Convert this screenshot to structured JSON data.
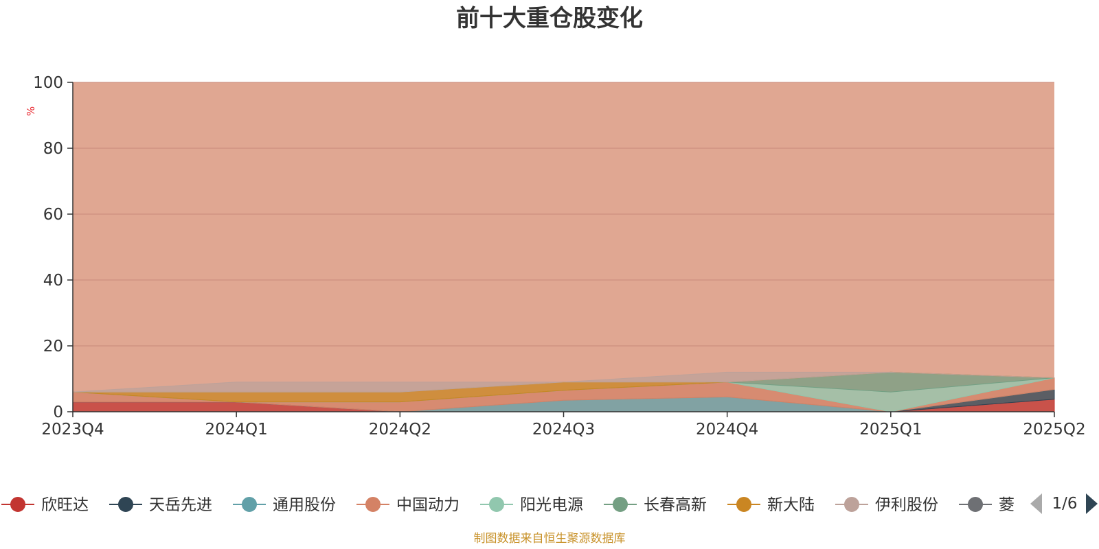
{
  "chart_data": {
    "type": "area",
    "title": "前十大重仓股变化",
    "unit_label": "%",
    "x": [
      "2023Q4",
      "2024Q1",
      "2024Q2",
      "2024Q3",
      "2024Q4",
      "2025Q1",
      "2025Q2"
    ],
    "ylim": [
      0,
      100
    ],
    "yticks": [
      0,
      20,
      40,
      60,
      80,
      100
    ],
    "grid": true,
    "stacked": true,
    "background_band_color": "#e0a792",
    "series": [
      {
        "name": "欣旺达",
        "color": "#c23531",
        "values": [
          3.0,
          3.0,
          0.0,
          0.0,
          0.0,
          0.0,
          3.8
        ]
      },
      {
        "name": "天岳先进",
        "color": "#2f4554",
        "values": [
          0.0,
          0.0,
          0.0,
          0.0,
          0.0,
          0.0,
          3.0
        ]
      },
      {
        "name": "通用股份",
        "color": "#61a0a8",
        "values": [
          0.0,
          0.0,
          0.0,
          3.5,
          4.5,
          0.0,
          0.0
        ]
      },
      {
        "name": "中国动力",
        "color": "#d48265",
        "values": [
          3.0,
          0.0,
          3.0,
          3.0,
          4.5,
          0.0,
          3.5
        ]
      },
      {
        "name": "阳光电源",
        "color": "#91c7ae",
        "values": [
          0.0,
          0.0,
          0.0,
          0.0,
          0.0,
          6.0,
          0.0
        ]
      },
      {
        "name": "长春高新",
        "color": "#749f83",
        "values": [
          0.0,
          0.0,
          0.0,
          0.0,
          0.0,
          6.0,
          0.0
        ]
      },
      {
        "name": "新大陆",
        "color": "#ca8622",
        "values": [
          0.0,
          3.0,
          3.0,
          2.5,
          0.0,
          0.0,
          0.0
        ]
      },
      {
        "name": "伊利股份",
        "color": "#bda29a",
        "values": [
          0.0,
          3.0,
          3.0,
          0.0,
          3.0,
          0.0,
          0.0
        ]
      }
    ],
    "legend": {
      "placement": "bottom",
      "page": "1/6",
      "items": [
        {
          "name": "欣旺达",
          "color": "#c23531"
        },
        {
          "name": "天岳先进",
          "color": "#2f4554"
        },
        {
          "name": "通用股份",
          "color": "#61a0a8"
        },
        {
          "name": "中国动力",
          "color": "#d48265"
        },
        {
          "name": "阳光电源",
          "color": "#91c7ae"
        },
        {
          "name": "长春高新",
          "color": "#749f83"
        },
        {
          "name": "新大陆",
          "color": "#ca8622"
        },
        {
          "name": "伊利股份",
          "color": "#bda29a"
        },
        {
          "name": "菱电电控",
          "color": "#6e7074"
        }
      ]
    },
    "source_note": "制图数据来自恒生聚源数据库"
  }
}
